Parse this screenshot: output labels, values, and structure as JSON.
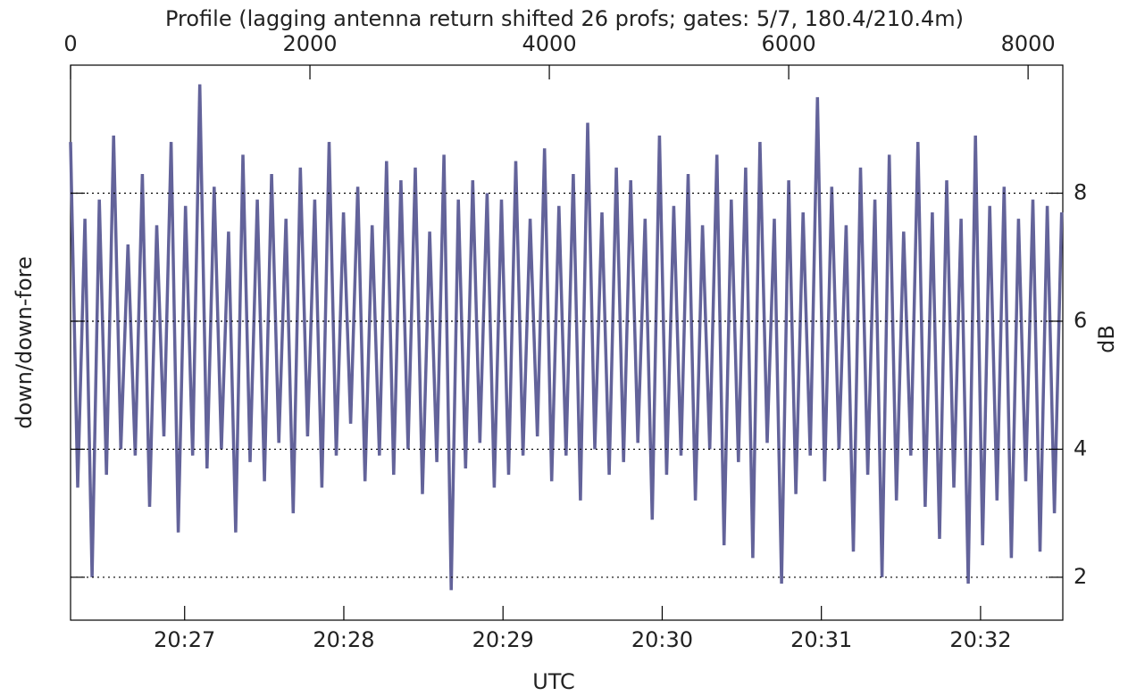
{
  "chart_data": {
    "type": "line",
    "title": "Profile (lagging antenna return shifted 26 profs; gates: 5/7, 180.4/210.4m)",
    "xlabel": "UTC",
    "ylabel": "down/down-fore",
    "y2label": "dB",
    "xlim": [
      0,
      8290
    ],
    "xticks": [
      0,
      2000,
      4000,
      6000,
      8000
    ],
    "x2lim": [
      73577,
      73951
    ],
    "x2ticks": [
      {
        "value": 73620,
        "label": "20:27"
      },
      {
        "value": 73680,
        "label": "20:28"
      },
      {
        "value": 73740,
        "label": "20:29"
      },
      {
        "value": 73800,
        "label": "20:30"
      },
      {
        "value": 73860,
        "label": "20:31"
      },
      {
        "value": 73920,
        "label": "20:32"
      }
    ],
    "ylim": [
      1.33,
      10
    ],
    "yticks": [
      2,
      4,
      6,
      8
    ],
    "grid": true,
    "x": [
      0,
      60,
      120,
      180,
      240,
      300,
      360,
      420,
      480,
      540,
      600,
      660,
      720,
      780,
      840,
      900,
      960,
      1020,
      1080,
      1140,
      1200,
      1260,
      1320,
      1380,
      1440,
      1500,
      1560,
      1620,
      1680,
      1740,
      1800,
      1860,
      1920,
      1980,
      2040,
      2100,
      2160,
      2220,
      2280,
      2340,
      2400,
      2460,
      2520,
      2580,
      2640,
      2700,
      2760,
      2820,
      2880,
      2940,
      3000,
      3060,
      3120,
      3180,
      3240,
      3300,
      3360,
      3420,
      3480,
      3540,
      3600,
      3660,
      3720,
      3780,
      3840,
      3900,
      3960,
      4020,
      4080,
      4140,
      4200,
      4260,
      4320,
      4380,
      4440,
      4500,
      4560,
      4620,
      4680,
      4740,
      4800,
      4860,
      4920,
      4980,
      5040,
      5100,
      5160,
      5220,
      5280,
      5340,
      5400,
      5460,
      5520,
      5580,
      5640,
      5700,
      5760,
      5820,
      5880,
      5940,
      6000,
      6060,
      6120,
      6180,
      6240,
      6300,
      6360,
      6420,
      6480,
      6540,
      6600,
      6660,
      6720,
      6780,
      6840,
      6900,
      6960,
      7020,
      7080,
      7140,
      7200,
      7260,
      7320,
      7380,
      7440,
      7500,
      7560,
      7620,
      7680,
      7740,
      7800,
      7860,
      7920,
      7980,
      8040,
      8100,
      8160,
      8220,
      8280
    ],
    "series": [
      {
        "color": "#63639a",
        "values": [
          8.8,
          3.4,
          7.6,
          2.0,
          7.9,
          3.6,
          8.9,
          4.0,
          7.2,
          3.9,
          8.3,
          3.1,
          7.5,
          4.2,
          8.8,
          2.7,
          7.8,
          3.9,
          9.7,
          3.7,
          8.1,
          4.0,
          7.4,
          2.7,
          8.6,
          3.8,
          7.9,
          3.5,
          8.3,
          4.1,
          7.6,
          3.0,
          8.4,
          4.2,
          7.9,
          3.4,
          8.8,
          3.9,
          7.7,
          4.4,
          8.1,
          3.5,
          7.5,
          3.9,
          8.5,
          3.6,
          8.2,
          4.0,
          8.4,
          3.3,
          7.4,
          3.8,
          8.6,
          1.8,
          7.9,
          3.7,
          8.2,
          4.1,
          8.0,
          3.4,
          7.9,
          3.6,
          8.5,
          3.9,
          7.6,
          4.2,
          8.7,
          3.5,
          7.8,
          3.9,
          8.3,
          3.2,
          9.1,
          4.0,
          7.7,
          3.6,
          8.4,
          3.8,
          8.2,
          4.1,
          7.6,
          2.9,
          8.9,
          3.6,
          7.8,
          3.9,
          8.3,
          3.2,
          7.5,
          4.0,
          8.6,
          2.5,
          7.9,
          3.8,
          8.4,
          2.3,
          8.8,
          4.1,
          7.6,
          1.9,
          8.2,
          3.3,
          7.7,
          3.9,
          9.5,
          3.5,
          8.1,
          4.0,
          7.5,
          2.4,
          8.4,
          3.6,
          7.9,
          2.0,
          8.6,
          3.2,
          7.4,
          3.9,
          8.8,
          3.1,
          7.7,
          2.6,
          8.2,
          3.4,
          7.6,
          1.9,
          8.9,
          2.5,
          7.8,
          3.2,
          8.1,
          2.3,
          7.6,
          3.5,
          7.9,
          2.4,
          7.8,
          3.0,
          7.7
        ]
      }
    ]
  }
}
